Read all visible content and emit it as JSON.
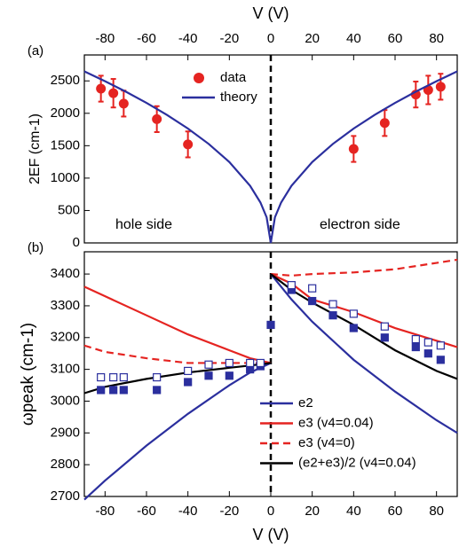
{
  "chart_data": [
    {
      "type": "line",
      "panel_label": "(a)",
      "xlabel": "V (V)",
      "ylabel": "2EF (cm-1)",
      "xlim": [
        -90,
        90
      ],
      "xticks": [
        -80,
        -60,
        -40,
        -20,
        0,
        20,
        40,
        60,
        80
      ],
      "ylim": [
        0,
        2900
      ],
      "yticks": [
        0,
        500,
        1000,
        1500,
        2000,
        2500
      ],
      "annotations": [
        "hole side",
        "electron side"
      ],
      "series": [
        {
          "name": "data",
          "kind": "scatter",
          "marker": "circle",
          "color": "#e52421",
          "x": [
            -82,
            -76,
            -71,
            -55,
            -40,
            40,
            55,
            70,
            76,
            82
          ],
          "values": [
            2380,
            2310,
            2150,
            1910,
            1520,
            1450,
            1850,
            2290,
            2360,
            2410
          ],
          "errors": [
            200,
            220,
            200,
            200,
            200,
            200,
            200,
            200,
            220,
            200
          ]
        },
        {
          "name": "theory",
          "kind": "line",
          "color": "#2b2f9e",
          "x": [
            -90,
            -80,
            -70,
            -60,
            -50,
            -40,
            -30,
            -20,
            -10,
            -5,
            -2,
            0,
            2,
            5,
            10,
            20,
            30,
            40,
            50,
            60,
            70,
            80,
            90
          ],
          "values": [
            2647,
            2495,
            2334,
            2161,
            1973,
            1765,
            1528,
            1248,
            882,
            624,
            395,
            0,
            395,
            624,
            882,
            1248,
            1528,
            1765,
            1973,
            2161,
            2334,
            2495,
            2647
          ]
        }
      ]
    },
    {
      "type": "line",
      "panel_label": "(b)",
      "xlabel": "V (V)",
      "ylabel": "ωpeak (cm-1)",
      "xlim": [
        -90,
        90
      ],
      "xticks": [
        -80,
        -60,
        -40,
        -20,
        0,
        20,
        40,
        60,
        80
      ],
      "ylim": [
        2700,
        3470
      ],
      "yticks": [
        2700,
        2800,
        2900,
        3000,
        3100,
        3200,
        3300,
        3400
      ],
      "series": [
        {
          "name": "e2",
          "kind": "line",
          "color": "#2b2f9e",
          "x": [
            -90,
            -80,
            -60,
            -40,
            -20,
            -10,
            0,
            0,
            0,
            10,
            20,
            40,
            60,
            80,
            90
          ],
          "values": [
            2690,
            2750,
            2860,
            2960,
            3050,
            3090,
            3120,
            null,
            3400,
            3320,
            3250,
            3130,
            3030,
            2940,
            2900
          ]
        },
        {
          "name": "e3 (v4=0.04)",
          "kind": "line",
          "color": "#e52421",
          "x": [
            -90,
            -80,
            -60,
            -40,
            -20,
            -10,
            0,
            0,
            0,
            10,
            20,
            40,
            60,
            80,
            90
          ],
          "values": [
            3360,
            3330,
            3270,
            3210,
            3160,
            3135,
            3120,
            null,
            3400,
            3370,
            3320,
            3280,
            3230,
            3190,
            3170
          ]
        },
        {
          "name": "e3 (v4=0)",
          "kind": "line",
          "dash": true,
          "color": "#e52421",
          "x": [
            -90,
            -80,
            -60,
            -40,
            -20,
            -10,
            0,
            0,
            0,
            10,
            20,
            40,
            60,
            80,
            90
          ],
          "values": [
            3175,
            3155,
            3135,
            3120,
            3120,
            3120,
            3120,
            null,
            3400,
            3395,
            3400,
            3405,
            3415,
            3435,
            3445
          ]
        },
        {
          "name": "(e2+e3)/2 (v4=0.04)",
          "kind": "line",
          "color": "#000000",
          "x": [
            -90,
            -80,
            -60,
            -40,
            -20,
            -10,
            0,
            0,
            0,
            10,
            20,
            40,
            60,
            80,
            90
          ],
          "values": [
            3025,
            3045,
            3070,
            3090,
            3105,
            3112,
            3120,
            null,
            3400,
            3350,
            3310,
            3240,
            3160,
            3095,
            3070
          ]
        },
        {
          "kind": "scatter",
          "marker": "square",
          "color": "#2b2f9e",
          "x": [
            -82,
            -76,
            -71,
            -55,
            -40,
            -30,
            -20,
            -10,
            -5,
            0,
            10,
            20,
            30,
            40,
            55,
            70,
            76,
            82
          ],
          "values": [
            3035,
            3035,
            3035,
            3035,
            3060,
            3080,
            3080,
            3100,
            3110,
            3240,
            3350,
            3315,
            3270,
            3230,
            3200,
            3170,
            3150,
            3130
          ]
        },
        {
          "kind": "scatter",
          "marker": "square-open",
          "color": "#2b2f9e",
          "x": [
            -82,
            -76,
            -71,
            -55,
            -40,
            -30,
            -20,
            -10,
            -5,
            10,
            20,
            30,
            40,
            55,
            70,
            76,
            82
          ],
          "values": [
            3075,
            3075,
            3075,
            3075,
            3095,
            3115,
            3120,
            3120,
            3120,
            3365,
            3355,
            3305,
            3275,
            3235,
            3195,
            3185,
            3175
          ]
        }
      ]
    }
  ]
}
